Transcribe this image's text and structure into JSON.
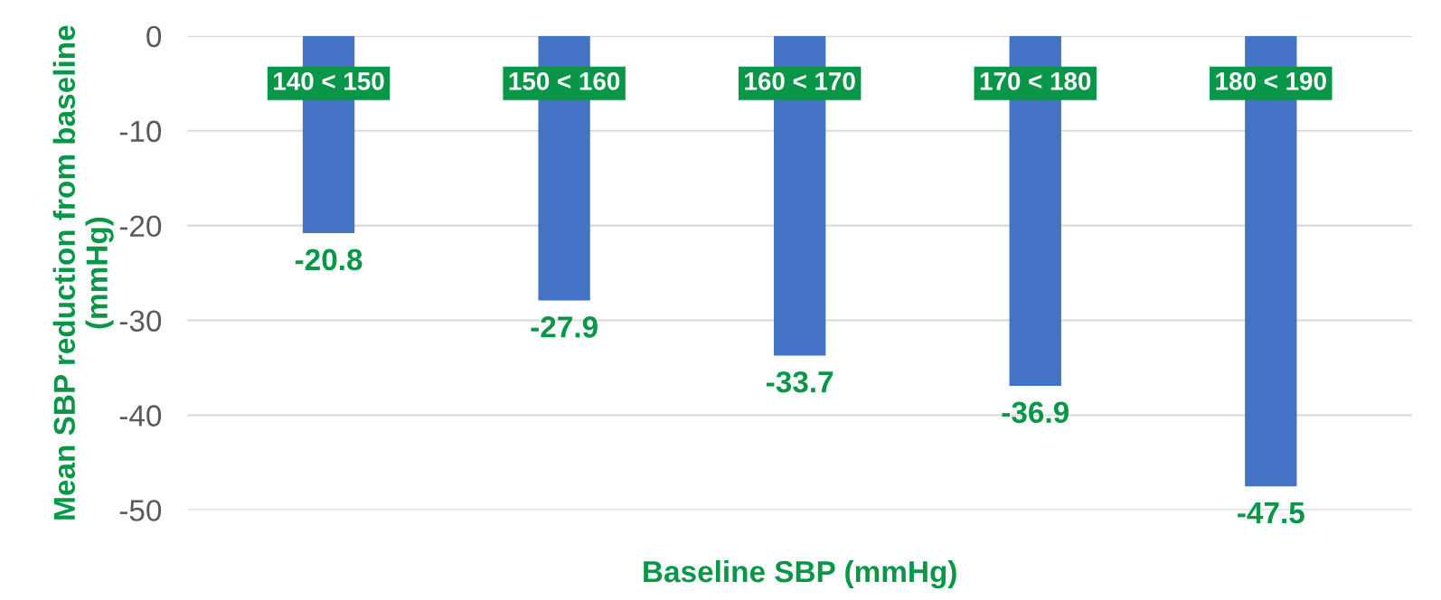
{
  "chart_data": {
    "type": "bar",
    "xlabel": "Baseline SBP (mmHg)",
    "ylabel": "Mean SBP reduction from baseline (mmHg)",
    "categories": [
      "140 < 150",
      "150 < 160",
      "160 < 170",
      "170 < 180",
      "180 < 190"
    ],
    "values": [
      -20.8,
      -27.9,
      -33.7,
      -36.9,
      -47.5
    ],
    "color": "#4472c4",
    "ylim": [
      -50,
      0
    ],
    "yticks": [
      0,
      -10,
      -20,
      -30,
      -40,
      -50
    ],
    "grid": "y",
    "data_labels": true
  }
}
